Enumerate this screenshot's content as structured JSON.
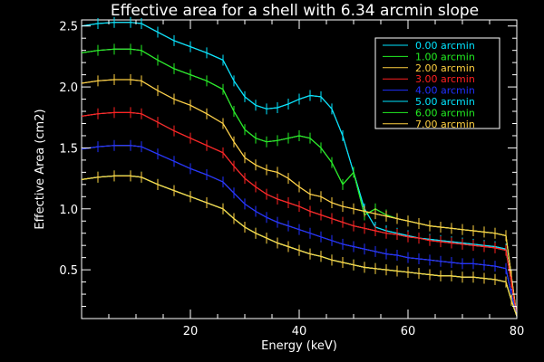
{
  "chart_data": {
    "type": "line",
    "title": "Effective area for a shell with 6.34 arcmin slope",
    "xlabel": "Energy (keV)",
    "ylabel": "Effective Area (cm2)",
    "xlim": [
      0,
      80
    ],
    "ylim": [
      0.1,
      2.55
    ],
    "xticks": [
      20,
      40,
      60,
      80
    ],
    "yticks": [
      0.5,
      1.0,
      1.5,
      2.0,
      2.5
    ],
    "xtick_labels": [
      "20",
      "40",
      "60",
      "80"
    ],
    "ytick_labels": [
      "0.5",
      "1.0",
      "1.5",
      "2.0",
      "2.5"
    ],
    "grid": false,
    "legend_position": "top-right",
    "x": [
      0,
      3,
      6,
      9,
      11,
      14,
      17,
      20,
      23,
      26,
      28,
      30,
      32,
      34,
      36,
      38,
      40,
      42,
      44,
      46,
      48,
      50,
      52,
      54,
      56,
      58,
      60,
      62,
      64,
      66,
      68,
      70,
      72,
      74,
      76,
      78,
      79,
      80
    ],
    "series": [
      {
        "name": "0.00 arcmin",
        "color": "#00e5ff",
        "values": [
          2.5,
          2.52,
          2.53,
          2.53,
          2.52,
          2.45,
          2.38,
          2.33,
          2.28,
          2.22,
          2.05,
          1.92,
          1.85,
          1.82,
          1.83,
          1.86,
          1.9,
          1.93,
          1.92,
          1.82,
          1.6,
          1.3,
          1.0,
          0.85,
          0.82,
          0.8,
          0.78,
          0.76,
          0.75,
          0.74,
          0.73,
          0.72,
          0.71,
          0.7,
          0.69,
          0.67,
          0.4,
          0.12
        ]
      },
      {
        "name": "1.00 arcmin",
        "color": "#22ee22",
        "values": [
          2.28,
          2.3,
          2.31,
          2.31,
          2.3,
          2.22,
          2.15,
          2.1,
          2.05,
          1.98,
          1.8,
          1.65,
          1.58,
          1.55,
          1.56,
          1.58,
          1.6,
          1.58,
          1.5,
          1.38,
          1.2,
          1.3,
          0.95,
          1.0,
          0.95,
          0.92,
          0.9,
          0.88,
          0.86,
          0.85,
          0.84,
          0.83,
          0.82,
          0.81,
          0.8,
          0.78,
          0.45,
          0.12
        ]
      },
      {
        "name": "2.00 arcmin",
        "color": "#ffd040",
        "values": [
          2.03,
          2.05,
          2.06,
          2.06,
          2.05,
          1.97,
          1.9,
          1.85,
          1.78,
          1.7,
          1.55,
          1.42,
          1.36,
          1.32,
          1.3,
          1.25,
          1.18,
          1.12,
          1.1,
          1.05,
          1.02,
          1.0,
          0.98,
          0.96,
          0.94,
          0.92,
          0.9,
          0.88,
          0.86,
          0.85,
          0.84,
          0.83,
          0.82,
          0.81,
          0.8,
          0.78,
          0.45,
          0.12
        ]
      },
      {
        "name": "3.00 arcmin",
        "color": "#ff2020",
        "values": [
          1.76,
          1.78,
          1.79,
          1.79,
          1.78,
          1.71,
          1.64,
          1.58,
          1.52,
          1.46,
          1.35,
          1.25,
          1.18,
          1.12,
          1.08,
          1.05,
          1.02,
          0.98,
          0.95,
          0.92,
          0.89,
          0.86,
          0.84,
          0.82,
          0.8,
          0.79,
          0.77,
          0.76,
          0.74,
          0.73,
          0.72,
          0.71,
          0.7,
          0.69,
          0.68,
          0.66,
          0.4,
          0.12
        ]
      },
      {
        "name": "4.00 arcmin",
        "color": "#2030ff",
        "values": [
          1.49,
          1.51,
          1.52,
          1.52,
          1.51,
          1.45,
          1.39,
          1.33,
          1.28,
          1.22,
          1.13,
          1.04,
          0.98,
          0.93,
          0.89,
          0.86,
          0.83,
          0.8,
          0.77,
          0.74,
          0.71,
          0.69,
          0.67,
          0.65,
          0.63,
          0.62,
          0.6,
          0.59,
          0.58,
          0.57,
          0.56,
          0.55,
          0.55,
          0.54,
          0.53,
          0.51,
          0.3,
          0.12
        ]
      },
      {
        "name": "5.00 arcmin",
        "color": "#00e5ff",
        "values": [
          1.24,
          1.26,
          1.27,
          1.27,
          1.26,
          1.2,
          1.15,
          1.1,
          1.05,
          1.0,
          0.92,
          0.85,
          0.8,
          0.76,
          0.72,
          0.69,
          0.66,
          0.63,
          0.61,
          0.58,
          0.56,
          0.54,
          0.52,
          0.51,
          0.5,
          0.49,
          0.48,
          0.47,
          0.46,
          0.45,
          0.45,
          0.44,
          0.44,
          0.43,
          0.42,
          0.4,
          0.25,
          0.12
        ]
      },
      {
        "name": "6.00 arcmin",
        "color": "#22ee22",
        "values": [
          1.24,
          1.26,
          1.27,
          1.27,
          1.26,
          1.2,
          1.15,
          1.1,
          1.05,
          1.0,
          0.92,
          0.85,
          0.8,
          0.76,
          0.72,
          0.69,
          0.66,
          0.63,
          0.61,
          0.58,
          0.56,
          0.54,
          0.52,
          0.51,
          0.5,
          0.49,
          0.48,
          0.47,
          0.46,
          0.45,
          0.45,
          0.44,
          0.44,
          0.43,
          0.42,
          0.4,
          0.25,
          0.12
        ]
      },
      {
        "name": "7.00 arcmin",
        "color": "#ffd040",
        "values": [
          1.24,
          1.26,
          1.27,
          1.27,
          1.26,
          1.2,
          1.15,
          1.1,
          1.05,
          1.0,
          0.92,
          0.85,
          0.8,
          0.76,
          0.72,
          0.69,
          0.66,
          0.63,
          0.61,
          0.58,
          0.56,
          0.54,
          0.52,
          0.51,
          0.5,
          0.49,
          0.48,
          0.47,
          0.46,
          0.45,
          0.45,
          0.44,
          0.44,
          0.43,
          0.42,
          0.4,
          0.25,
          0.12
        ]
      }
    ]
  }
}
